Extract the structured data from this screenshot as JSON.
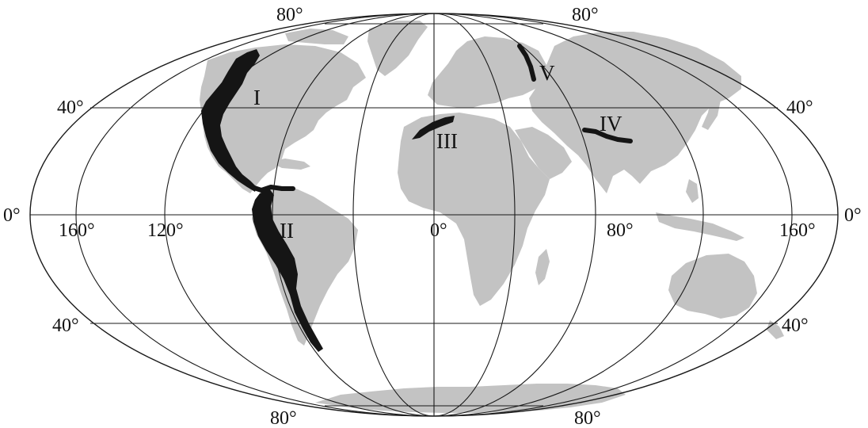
{
  "graticule": {
    "top_left": "80°",
    "top_right": "80°",
    "bottom_left": "80°",
    "bottom_right": "80°",
    "lat40_north_left": "40°",
    "lat40_north_right": "40°",
    "lat40_south_left": "40°",
    "lat40_south_right": "40°",
    "equator_left": "0°",
    "equator_right": "0°",
    "lon_160_west": "160°",
    "lon_120_west": "120°",
    "lon_0": "0°",
    "lon_80_east": "80°",
    "lon_160_east": "160°"
  },
  "belts": {
    "I": "I",
    "II": "II",
    "III": "III",
    "IV": "IV",
    "V": "V"
  },
  "colors": {
    "land": "#c3c3c3",
    "belt": "#151515",
    "grid": "#1a1a1a"
  }
}
